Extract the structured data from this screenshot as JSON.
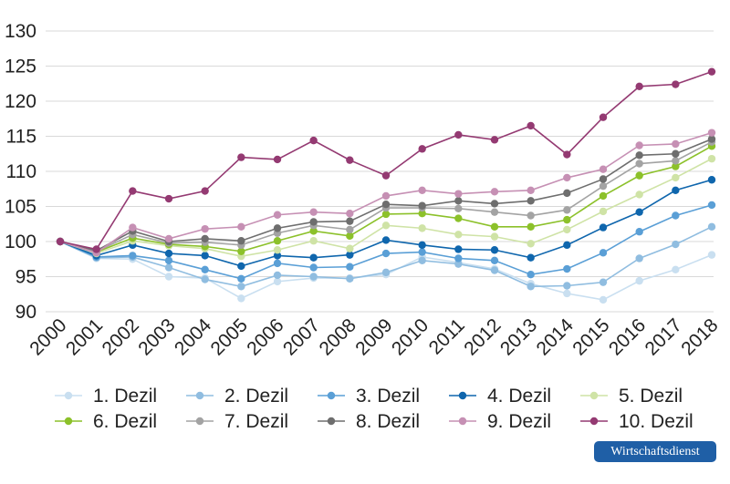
{
  "brand": {
    "label": "Wirtschaftsdienst",
    "color": "#1f5fa6"
  },
  "chart_data": {
    "type": "line",
    "title": "",
    "xlabel": "",
    "ylabel": "",
    "ylim": [
      90,
      130
    ],
    "yticks": [
      90,
      95,
      100,
      105,
      110,
      115,
      120,
      125,
      130
    ],
    "grid": true,
    "legend": "bottom",
    "categories": [
      "2000",
      "2001",
      "2002",
      "2003",
      "2004",
      "2005",
      "2006",
      "2007",
      "2008",
      "2009",
      "2010",
      "2011",
      "2012",
      "2013",
      "2014",
      "2015",
      "2016",
      "2017",
      "2018"
    ],
    "series": [
      {
        "name": "1. Dezil",
        "color": "#c9dff0",
        "values": [
          100,
          97.6,
          97.5,
          95.0,
          94.8,
          91.9,
          94.3,
          94.8,
          94.8,
          95.3,
          97.8,
          97.0,
          96.1,
          94.0,
          92.6,
          91.7,
          94.4,
          96.0,
          98.1
        ]
      },
      {
        "name": "2. Dezil",
        "color": "#90bde0",
        "values": [
          100,
          97.7,
          97.8,
          96.3,
          94.6,
          93.6,
          95.2,
          95.0,
          94.7,
          95.6,
          97.3,
          96.8,
          95.9,
          93.6,
          93.7,
          94.2,
          97.6,
          99.6,
          102.1
        ]
      },
      {
        "name": "3. Dezil",
        "color": "#5a9fd6",
        "values": [
          100,
          97.8,
          98.0,
          97.3,
          96.0,
          94.7,
          96.9,
          96.3,
          96.4,
          98.3,
          98.5,
          97.6,
          97.3,
          95.3,
          96.1,
          98.4,
          101.4,
          103.7,
          105.2
        ]
      },
      {
        "name": "4. Dezil",
        "color": "#0f66ad",
        "values": [
          100,
          98.0,
          99.5,
          98.3,
          98.0,
          96.5,
          98.0,
          97.7,
          98.1,
          100.2,
          99.5,
          98.9,
          98.8,
          97.7,
          99.5,
          102.0,
          104.2,
          107.3,
          108.8
        ]
      },
      {
        "name": "5. Dezil",
        "color": "#cfe3a6",
        "values": [
          100,
          98.3,
          100.1,
          99.4,
          99.0,
          97.9,
          98.8,
          100.1,
          99.0,
          102.3,
          101.9,
          101.0,
          100.7,
          99.7,
          101.7,
          104.3,
          106.7,
          109.1,
          111.8
        ]
      },
      {
        "name": "6. Dezil",
        "color": "#8cc12a",
        "values": [
          100,
          98.5,
          100.5,
          99.6,
          99.3,
          98.6,
          100.1,
          101.5,
          100.8,
          103.9,
          104.0,
          103.3,
          102.1,
          102.1,
          103.1,
          106.5,
          109.4,
          110.7,
          113.6
        ]
      },
      {
        "name": "7. Dezil",
        "color": "#a3a3a3",
        "values": [
          100,
          98.6,
          101.0,
          99.8,
          99.9,
          99.5,
          101.2,
          102.3,
          101.7,
          104.8,
          104.8,
          104.7,
          104.2,
          103.7,
          104.5,
          107.9,
          111.1,
          111.5,
          114.2
        ]
      },
      {
        "name": "8. Dezil",
        "color": "#6e6e6e",
        "values": [
          100,
          98.7,
          101.5,
          100.0,
          100.4,
          100.1,
          101.9,
          102.8,
          102.9,
          105.3,
          105.1,
          105.8,
          105.4,
          105.8,
          106.9,
          108.9,
          112.3,
          112.5,
          114.6
        ]
      },
      {
        "name": "9. Dezil",
        "color": "#c690b4",
        "values": [
          100,
          98.4,
          102.0,
          100.4,
          101.8,
          102.1,
          103.8,
          104.2,
          104.0,
          106.5,
          107.3,
          106.8,
          107.1,
          107.3,
          109.1,
          110.3,
          113.7,
          113.9,
          115.5
        ]
      },
      {
        "name": "10. Dezil",
        "color": "#943a72",
        "values": [
          100,
          98.9,
          107.2,
          106.1,
          107.2,
          112.0,
          111.7,
          114.4,
          111.6,
          109.4,
          113.2,
          115.2,
          114.5,
          116.5,
          112.4,
          117.7,
          122.1,
          122.4,
          124.2
        ]
      }
    ]
  }
}
